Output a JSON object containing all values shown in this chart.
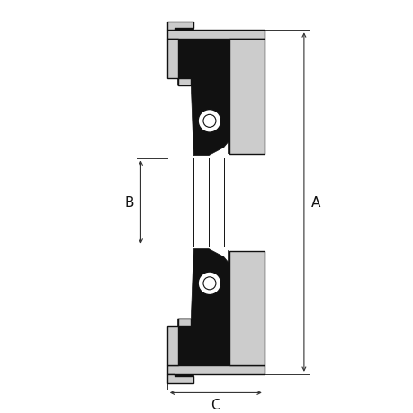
{
  "bg_color": "#ffffff",
  "fill_dark": "#111111",
  "fill_light": "#cccccc",
  "dim_color": "#333333",
  "figsize": [
    4.6,
    4.6
  ],
  "dpi": 100,
  "label_A": "A",
  "label_B": "B",
  "label_C": "C",
  "label_fontsize": 11
}
